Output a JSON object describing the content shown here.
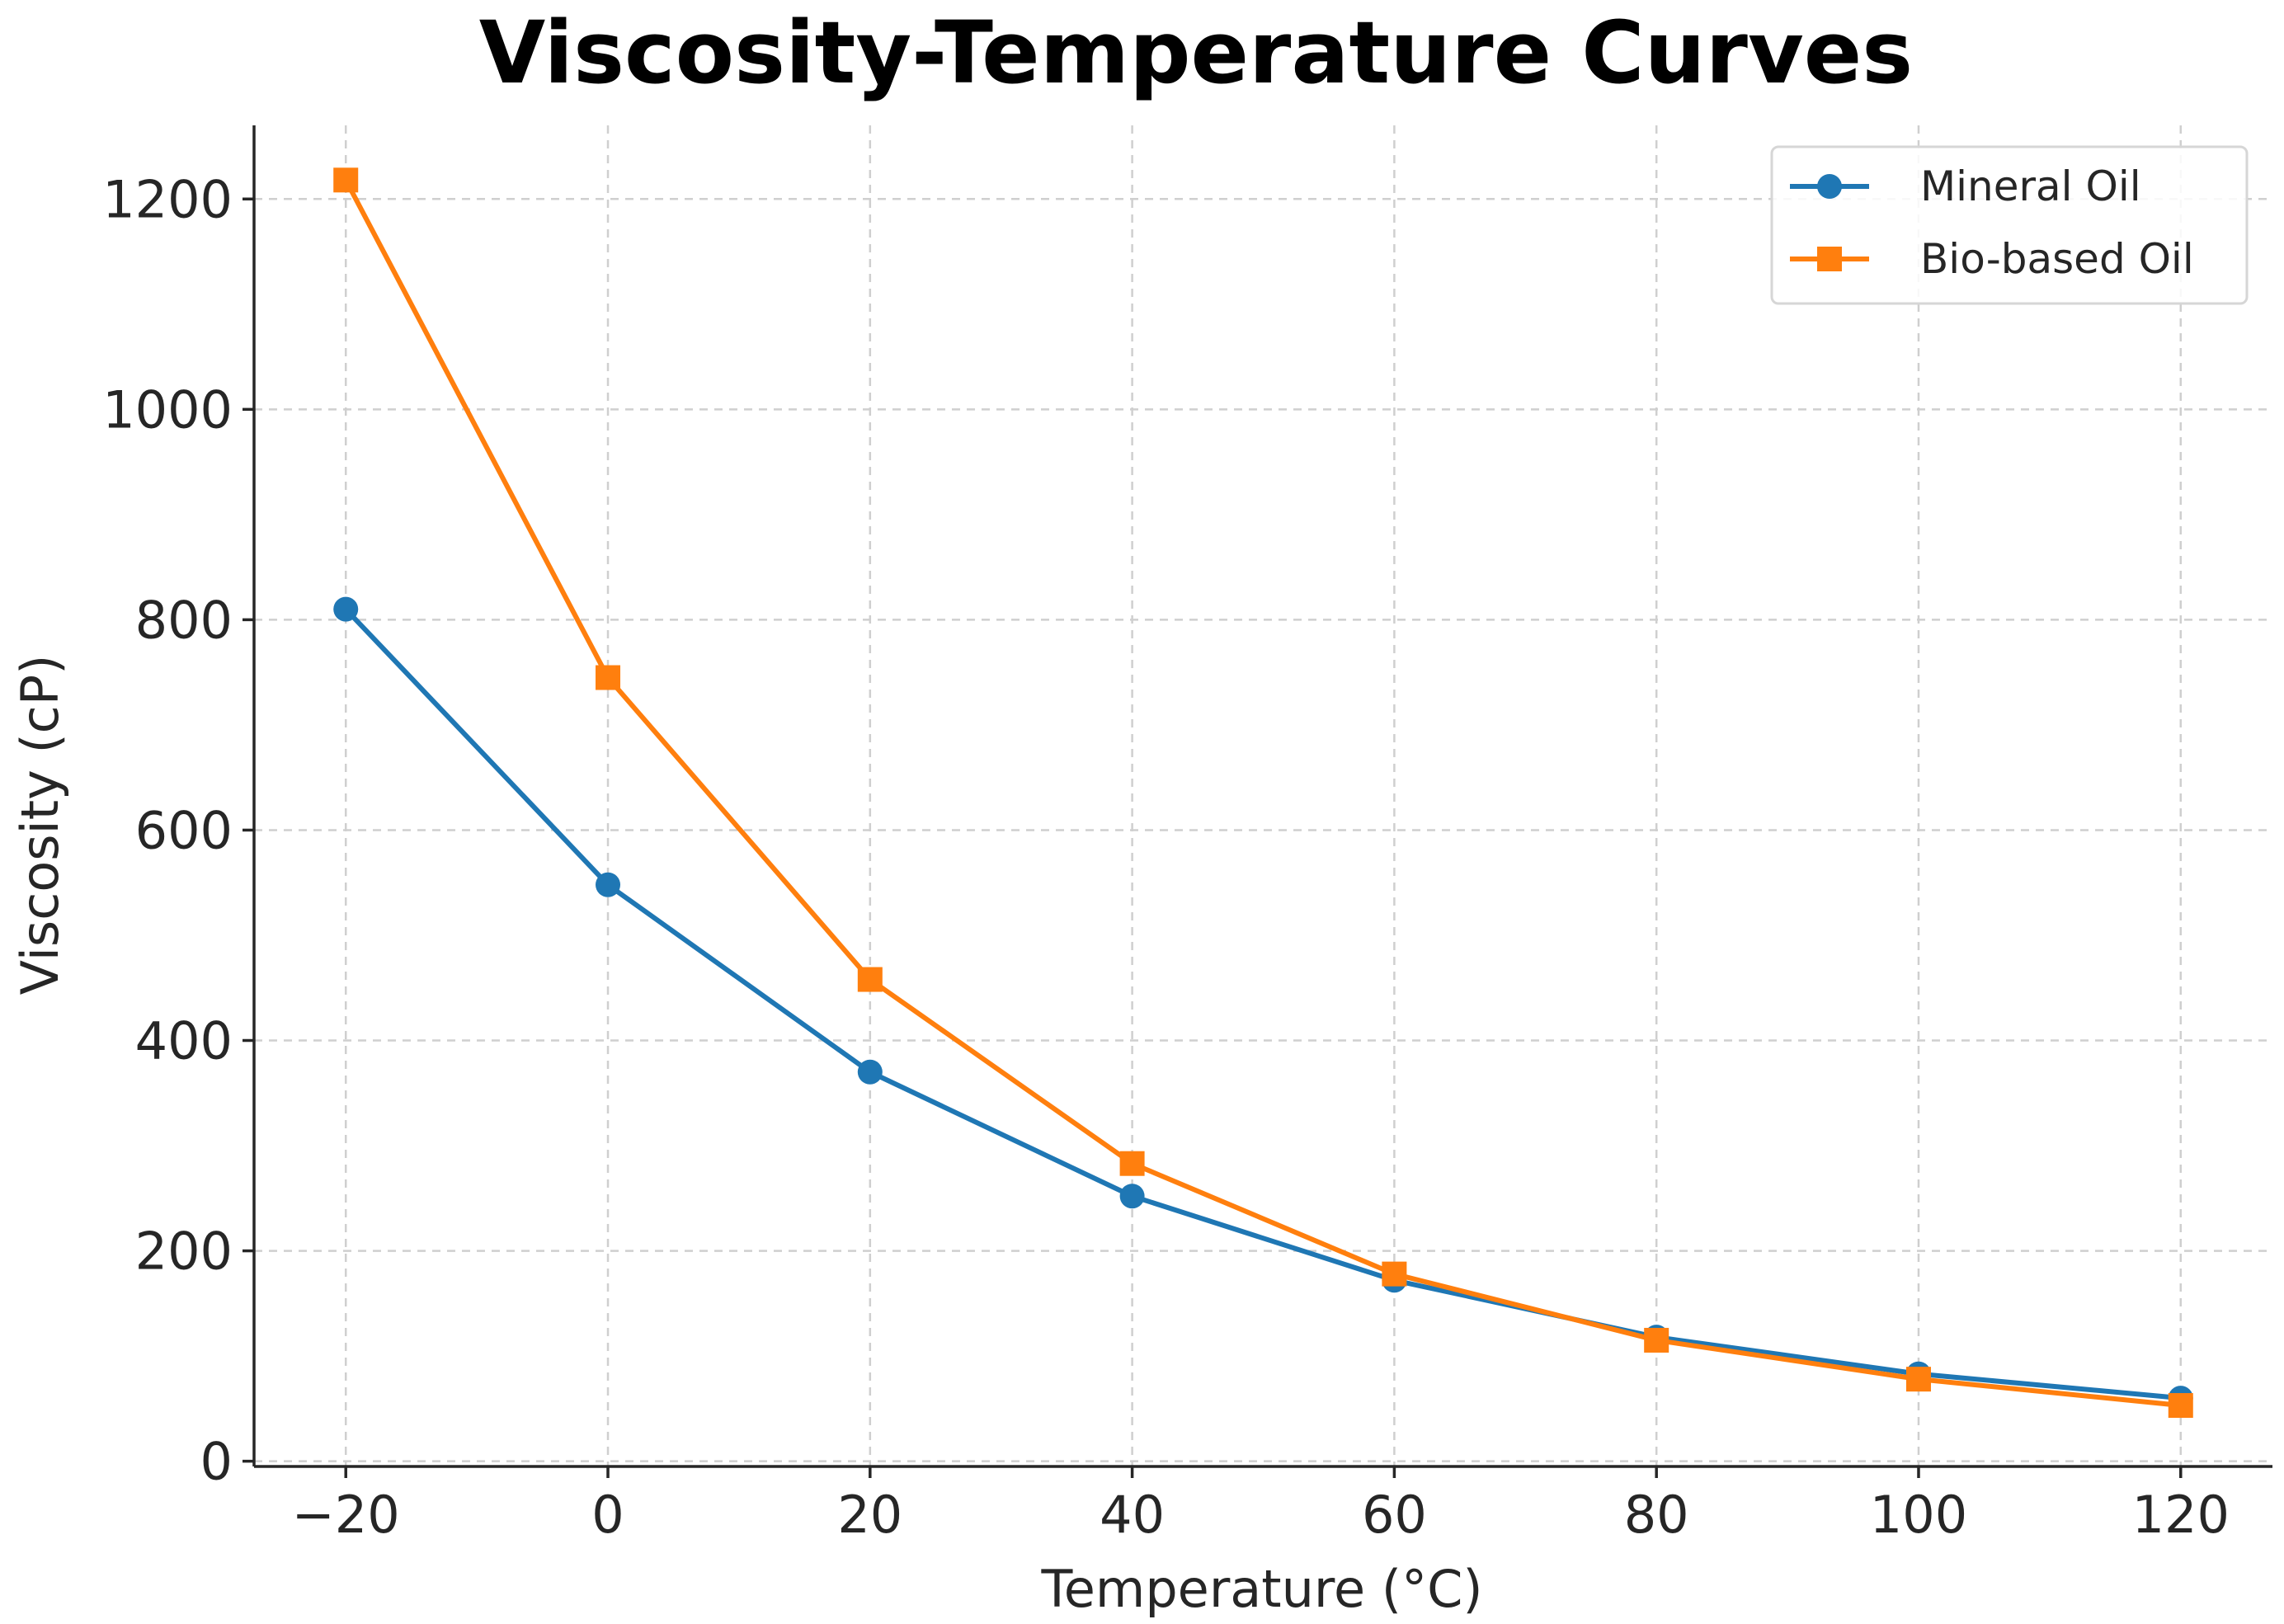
{
  "chart_data": {
    "type": "line",
    "title": "Viscosity-Temperature Curves",
    "xlabel": "Temperature (°C)",
    "ylabel": "Viscosity (cP)",
    "x": [
      -20,
      0,
      20,
      40,
      60,
      80,
      100,
      120
    ],
    "xlim": [
      -27,
      127
    ],
    "ylim": [
      -5,
      1270
    ],
    "x_ticks": [
      "−20",
      "0",
      "20",
      "40",
      "60",
      "80",
      "100",
      "120"
    ],
    "x_tick_values": [
      -20,
      0,
      20,
      40,
      60,
      80,
      100,
      120
    ],
    "y_ticks": [
      "0",
      "200",
      "400",
      "600",
      "800",
      "1000",
      "1200"
    ],
    "y_tick_values": [
      0,
      200,
      400,
      600,
      800,
      1000,
      1200
    ],
    "grid": true,
    "legend_position": "top-right",
    "series": [
      {
        "name": "Mineral Oil",
        "color": "#1f77b4",
        "marker": "circle",
        "values": [
          810,
          548,
          370,
          252,
          172,
          118,
          83,
          60
        ]
      },
      {
        "name": "Bio-based Oil",
        "color": "#ff7f0e",
        "marker": "square",
        "values": [
          1218,
          745,
          458,
          283,
          178,
          115,
          78,
          53
        ]
      }
    ]
  }
}
